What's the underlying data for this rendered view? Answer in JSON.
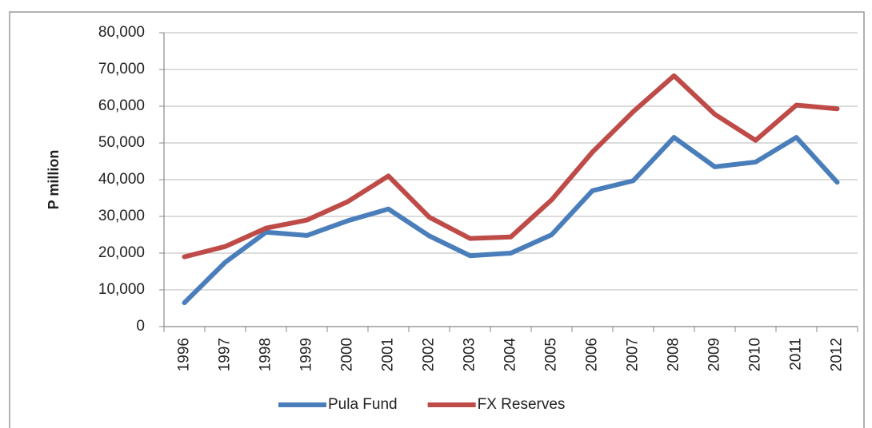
{
  "chart_data": {
    "type": "line",
    "categories": [
      "1996",
      "1997",
      "1998",
      "1999",
      "2000",
      "2001",
      "2002",
      "2003",
      "2004",
      "2005",
      "2006",
      "2007",
      "2008",
      "2009",
      "2010",
      "2011",
      "2012"
    ],
    "series": [
      {
        "name": "Pula Fund",
        "color": "#4a7ebb",
        "values": [
          6500,
          17500,
          25700,
          24800,
          28800,
          32000,
          24700,
          19300,
          20000,
          25000,
          37000,
          39700,
          51500,
          43500,
          44800,
          51500,
          39300
        ]
      },
      {
        "name": "FX Reserves",
        "color": "#be4b48",
        "values": [
          19000,
          21800,
          26800,
          29000,
          34000,
          41000,
          29800,
          24000,
          24400,
          34500,
          47500,
          58500,
          68300,
          57800,
          50700,
          60300,
          59300
        ]
      }
    ],
    "y_label": "P million",
    "ylim": [
      0,
      80000
    ],
    "yticks": [
      0,
      {
        "value": 10000,
        "label": "10,000"
      },
      {
        "value": 20000,
        "label": "20,000"
      },
      {
        "value": 30000,
        "label": "30,000"
      },
      {
        "value": 40000,
        "label": "40,000"
      },
      {
        "value": 50000,
        "label": "50,000"
      },
      {
        "value": 60000,
        "label": "60,000"
      },
      {
        "value": 70000,
        "label": "70,000"
      },
      {
        "value": 80000,
        "label": "80,000"
      }
    ],
    "grid": true,
    "legend": "bottom"
  }
}
